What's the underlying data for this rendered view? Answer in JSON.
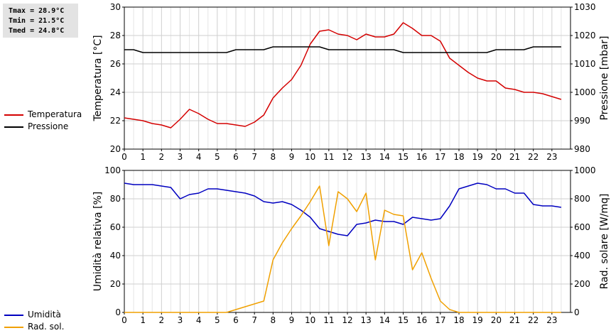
{
  "stats": {
    "tmax": "Tmax = 28.9°C",
    "tmin": "Tmin = 21.5°C",
    "tmed": "Tmed = 24.8°C"
  },
  "legend_top": [
    {
      "label": "Temperatura",
      "color": "#d40000"
    },
    {
      "label": "Pressione",
      "color": "#000000"
    }
  ],
  "legend_bottom": [
    {
      "label": "Umidità",
      "color": "#0000c0"
    },
    {
      "label": "Rad. sol.",
      "color": "#f0a000"
    }
  ],
  "chart_data": [
    {
      "type": "line",
      "x": [
        0,
        0.5,
        1,
        1.5,
        2,
        2.5,
        3,
        3.5,
        4,
        4.5,
        5,
        5.5,
        6,
        6.5,
        7,
        7.5,
        8,
        8.5,
        9,
        9.5,
        10,
        10.5,
        11,
        11.5,
        12,
        12.5,
        13,
        13.5,
        14,
        14.5,
        15,
        15.5,
        16,
        16.5,
        17,
        17.5,
        18,
        18.5,
        19,
        19.5,
        20,
        20.5,
        21,
        21.5,
        22,
        22.5,
        23,
        23.5
      ],
      "xlim": [
        0,
        24
      ],
      "xticks": [
        "0",
        "1",
        "2",
        "3",
        "4",
        "5",
        "6",
        "7",
        "8",
        "9",
        "10",
        "11",
        "12",
        "13",
        "14",
        "15",
        "16",
        "17",
        "18",
        "19",
        "20",
        "21",
        "22",
        "23"
      ],
      "ylabel": "Temperatura [°C]",
      "ylim": [
        20,
        30
      ],
      "yticks": [
        "20",
        "22",
        "24",
        "26",
        "28",
        "30"
      ],
      "y2label": "Pressione [mbar]",
      "y2lim": [
        980,
        1030
      ],
      "y2ticks": [
        "980",
        "990",
        "1000",
        "1010",
        "1020",
        "1030"
      ],
      "grid": true,
      "series": [
        {
          "name": "Temperatura",
          "axis": "left",
          "color": "#d40000",
          "values": [
            22.2,
            22.1,
            22.0,
            21.8,
            21.7,
            21.5,
            22.1,
            22.8,
            22.5,
            22.1,
            21.8,
            21.8,
            21.7,
            21.6,
            21.9,
            22.4,
            23.6,
            24.3,
            24.9,
            25.9,
            27.4,
            28.3,
            28.4,
            28.1,
            28.0,
            27.7,
            28.1,
            27.9,
            27.9,
            28.1,
            28.9,
            28.5,
            28.0,
            28.0,
            27.6,
            26.4,
            25.9,
            25.4,
            25.0,
            24.8,
            24.8,
            24.3,
            24.2,
            24.0,
            24.0,
            23.9,
            23.7,
            23.5
          ]
        },
        {
          "name": "Pressione",
          "axis": "right",
          "color": "#000000",
          "values": [
            1015,
            1015,
            1014,
            1014,
            1014,
            1014,
            1014,
            1014,
            1014,
            1014,
            1014,
            1014,
            1015,
            1015,
            1015,
            1015,
            1016,
            1016,
            1016,
            1016,
            1016,
            1016,
            1015,
            1015,
            1015,
            1015,
            1015,
            1015,
            1015,
            1015,
            1014,
            1014,
            1014,
            1014,
            1014,
            1014,
            1014,
            1014,
            1014,
            1014,
            1015,
            1015,
            1015,
            1015,
            1016,
            1016,
            1016,
            1016
          ]
        }
      ]
    },
    {
      "type": "line",
      "x": [
        0,
        0.5,
        1,
        1.5,
        2,
        2.5,
        3,
        3.5,
        4,
        4.5,
        5,
        5.5,
        6,
        6.5,
        7,
        7.5,
        8,
        8.5,
        9,
        9.5,
        10,
        10.5,
        11,
        11.5,
        12,
        12.5,
        13,
        13.5,
        14,
        14.5,
        15,
        15.5,
        16,
        16.5,
        17,
        17.5,
        18,
        18.5,
        19,
        19.5,
        20,
        20.5,
        21,
        21.5,
        22,
        22.5,
        23,
        23.5
      ],
      "xlim": [
        0,
        24
      ],
      "xticks": [
        "0",
        "1",
        "2",
        "3",
        "4",
        "5",
        "6",
        "7",
        "8",
        "9",
        "10",
        "11",
        "12",
        "13",
        "14",
        "15",
        "16",
        "17",
        "18",
        "19",
        "20",
        "21",
        "22",
        "23"
      ],
      "ylabel": "Umidità relativa [%]",
      "ylim": [
        0,
        100
      ],
      "yticks": [
        "0",
        "20",
        "40",
        "60",
        "80",
        "100"
      ],
      "y2label": "Rad. solare [W/mq]",
      "y2lim": [
        0,
        1000
      ],
      "y2ticks": [
        "0",
        "200",
        "400",
        "600",
        "800",
        "1000"
      ],
      "grid": true,
      "series": [
        {
          "name": "Umidità",
          "axis": "left",
          "color": "#0000c0",
          "values": [
            91,
            90,
            90,
            90,
            89,
            88,
            80,
            83,
            84,
            87,
            87,
            86,
            85,
            84,
            82,
            78,
            77,
            78,
            76,
            72,
            67,
            59,
            57,
            55,
            54,
            62,
            63,
            65,
            64,
            64,
            62,
            67,
            66,
            65,
            66,
            75,
            87,
            89,
            91,
            90,
            87,
            87,
            84,
            84,
            76,
            75,
            75,
            74
          ]
        },
        {
          "name": "Rad. sol.",
          "axis": "right",
          "color": "#f0a000",
          "values": [
            0,
            0,
            0,
            0,
            0,
            0,
            0,
            0,
            0,
            0,
            0,
            0,
            20,
            40,
            60,
            80,
            370,
            490,
            590,
            680,
            780,
            890,
            470,
            850,
            800,
            710,
            840,
            370,
            720,
            690,
            680,
            300,
            420,
            240,
            80,
            20,
            0,
            0,
            0,
            0,
            0,
            0,
            0,
            0,
            0,
            0,
            0,
            0
          ]
        }
      ]
    }
  ]
}
